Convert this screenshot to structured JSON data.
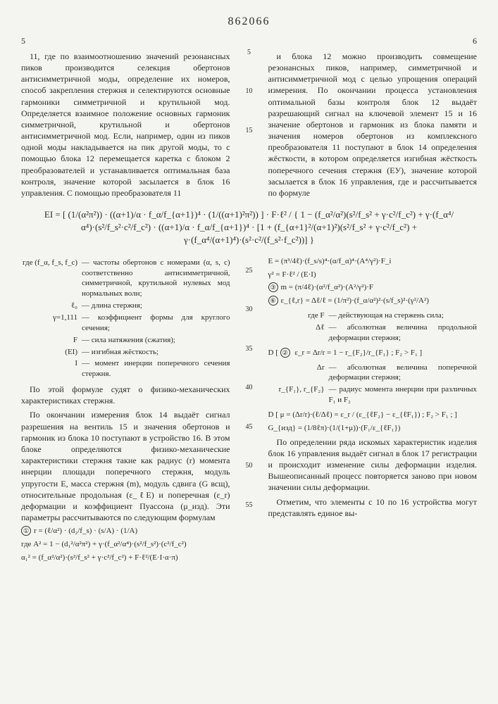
{
  "document_number": "862066",
  "left_page_num": "5",
  "right_page_num": "6",
  "line_markers": [
    "5",
    "10",
    "15",
    "25",
    "30",
    "35",
    "40",
    "45",
    "50",
    "55"
  ],
  "col_left_top": "11, где по взаимоотношению значений резонансных пиков производится селекция обертонов антисимметричной моды, определение их номеров, способ закрепления стержня и селектируются основные гармоники симметричной и крутильной мод. Определяется взаимное положение основных гармоник симметричной, крутильной и обертонов антисимметричной мод. Если, например, один из пиков одной моды накладывается на пик другой моды, то с помощью блока 12 перемещается каретка с блоком 2 преобразователей и устанавливается оптимальная база контроля, значение которой засылается в блок 16 управления. С помощью преобразователя 11",
  "col_right_top": "и блока 12 можно производить совмещение резонансных пиков, например, симметричной и антисимметричной мод с целью упрощения операций измерения. По окончании процесса установления оптимальной базы контроля блок 12 выдаёт разрешающий сигнал на ключевой элемент 15 и 16 значение обертонов и гармоник из блока памяти и значения номеров обертонов из комплексного преобразователя 11 поступают в блок 14 определения жёсткости, в котором определяется изгибная жёсткость поперечного сечения стержня (EУ), значение которой засылается в блок 16 управления, где и рассчитывается по формуле",
  "main_formula": "EI = [ (1/(α²π²)) · ((α+1)/α · f_α/f_{α+1})⁴ · (1/((α+1)²π²)) ] · F·ℓ²  /  { 1 − (f_α²/α²)(s²/f_s² + γ·c²/f_c²) + γ·(f_α⁴/α⁴)·(s²/f_s²·c²/f_c²) · ((α+1)/α · f_α/f_{α+1})⁴ · [1 + (f_{α+1}²/(α+1)²)(s²/f_s² + γ·c²/f_c²) + γ·(f_α⁴/(α+1)⁴)·(s²·c²/(f_s²·f_c²))] }",
  "defs": [
    {
      "term": "(f_α, f_s, f_c)",
      "desc": "— частоты обертонов с номерами (α, s, c) соответственно антисимметричной, симметричной, крутильной нулевых мод нормальных волн;"
    },
    {
      "term": "ℓ₀",
      "desc": "— длина стержня;"
    },
    {
      "term": "γ=1,111",
      "desc": "— коэффициент формы для круглого сечения;"
    },
    {
      "term": "F",
      "desc": "— сила натяжения (сжатия);"
    },
    {
      "term": "(EI)",
      "desc": "— изгибная жёсткость;"
    },
    {
      "term": "I",
      "desc": "— момент инерции поперечного сечения стержня."
    }
  ],
  "para_after_defs": "По этой формуле судят о физико-механических характеристиках стержня.",
  "para_block14": "По окончании измерения блок 14 выдаёт сигнал разрешения на вентиль 15 и значения обертонов и гармоник из блока 10 поступают в устройство 16. В этом блоке определяются физико-механические характеристики стержня такие как радиус (r) момента инерции площади поперечного стержня, модуль упругости E, масса стержня (m), модуль сдвига (G всщ), относительные продольная (ε_ℓE) и поперечная (ε_r) деформации и коэффициент Пуассона (μ_изд). Эти параметры рассчитываются по следующим формулам",
  "left_eqs": [
    "r = (ℓ/α²) · (d₂/f_s) · (s/A) · (1/A)",
    "где  A² = 1 − (d₁²/α²π²) + γ·(f_α²/α⁴)·(s²/f_s²)·(c²/f_c²)",
    "α₁² = (f_α²/α²)·(s²/f_s² + γ·c²/f_c²) + F·ℓ²/(E·I·α·π)"
  ],
  "right_eqs": [
    "E = (π³/4ℓ)·(f_s/s)⁴·(α/f_α)⁴·(A⁴/γ²)·F_i",
    "γ² = F·ℓ² / (E·I)",
    "m = (π/4ℓ)·(α²/f_α²)·(A²/γ²)·F",
    "ε_{ℓ,r} = Δℓ/ℓ = (1/π²)·(f_α/α²)²·(s/f_s)²·(γ²/A²)"
  ],
  "right_defs": [
    {
      "term": "F",
      "desc": "— действующая на стержень сила;"
    },
    {
      "term": "Δℓ",
      "desc": "— абсолютная величина продольной деформации стержня;"
    }
  ],
  "right_eq_Er": "ε_r = Δr/r = 1 − r_{F₂}/r_{F₁} ;  F₂ > F₁",
  "right_defs2": [
    {
      "term": "Δr",
      "desc": "— абсолютная величина поперечной деформации стержня;"
    },
    {
      "term": "r_{F₁}, r_{F₂}",
      "desc": "— радиус момента инерции при различных F₁ и F₂"
    }
  ],
  "right_eq_mu": "μ = (Δr/r)·(ℓ/Δℓ) = ε_r / (ε_{ℓF₂} − ε_{ℓF₁}) ;  F₂ > F₁ ;",
  "right_eq_G": "G_{изд} = (1/8ℓπ)·(1/(1+μ))·(F₁/ε_{ℓF₁})",
  "para_end1": "По определении ряда искомых характеристик изделия блок 16 управления выдаёт сигнал в блок 17 регистрации и происходит изменение силы деформации изделия. Вышеописанный процесс повторяется заново при новом значении силы деформации.",
  "para_end2": "Отметим, что элементы с 10 по 16 устройства могут представлять единое вы-"
}
